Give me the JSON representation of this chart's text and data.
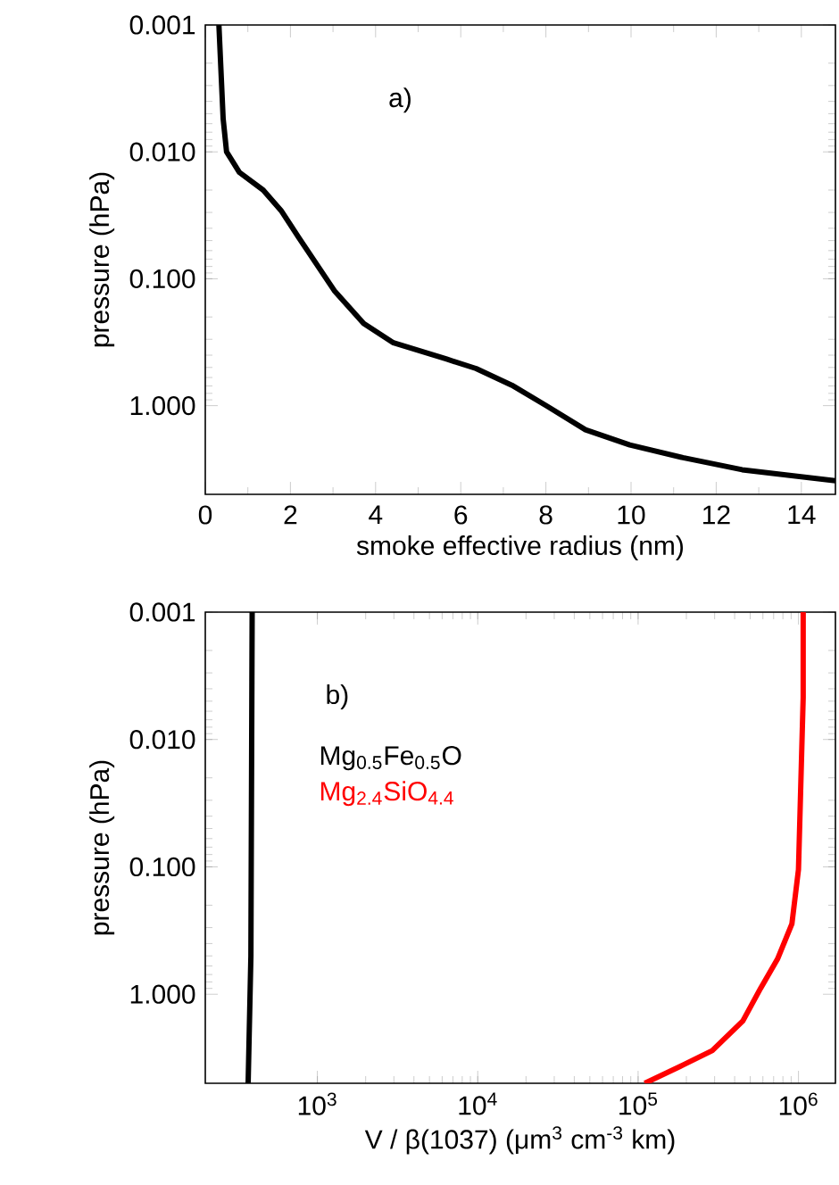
{
  "chart_data": [
    {
      "type": "line",
      "xlabel": "smoke effective radius (nm)",
      "ylabel": "pressure (hPa)",
      "annotations": [
        "a)"
      ],
      "log": "y",
      "xlim": [
        0,
        14.8
      ],
      "xticks": [
        0,
        2,
        4,
        6,
        8,
        10,
        12,
        14
      ],
      "ylim": [
        5,
        0.001
      ],
      "yticks": [
        {
          "value": 0.001,
          "label": "0.001"
        },
        {
          "value": 0.01,
          "label": "0.010"
        },
        {
          "value": 0.1,
          "label": "0.100"
        },
        {
          "value": 1,
          "label": "1.000"
        }
      ],
      "series": [
        {
          "color": "#000000",
          "x": [
            0.32,
            0.42,
            0.5,
            0.8,
            1.36,
            1.78,
            2.19,
            3.03,
            3.72,
            4.42,
            5.67,
            6.36,
            7.2,
            8.03,
            8.93,
            9.97,
            11.22,
            12.61,
            14.8
          ],
          "values": [
            0.001,
            0.0055,
            0.01,
            0.0145,
            0.02,
            0.029,
            0.047,
            0.124,
            0.225,
            0.32,
            0.43,
            0.51,
            0.69,
            1.01,
            1.55,
            2.04,
            2.57,
            3.2,
            3.9
          ]
        }
      ]
    },
    {
      "type": "line",
      "xlabel": "V / β(1037) (μm$^{3}$ cm$^{-3}$ km)",
      "ylabel": "pressure (hPa)",
      "annotations": [
        "b)"
      ],
      "log": "xy",
      "legend": "top left",
      "xlim": [
        200,
        1700000
      ],
      "xticks": [
        {
          "value": 1000,
          "label": "10$^{3}$"
        },
        {
          "value": 10000,
          "label": "10$^{4}$"
        },
        {
          "value": 100000,
          "label": "10$^{5}$"
        },
        {
          "value": 1000000,
          "label": "10$^{6}$"
        }
      ],
      "ylim": [
        5,
        0.001
      ],
      "yticks": [
        {
          "value": 0.001,
          "label": "0.001"
        },
        {
          "value": 0.01,
          "label": "0.010"
        },
        {
          "value": 0.1,
          "label": "0.100"
        },
        {
          "value": 1,
          "label": "1.000"
        }
      ],
      "series": [
        {
          "name": "Mg$_{0.5}$Fe$_{0.5}$O",
          "color": "#000000",
          "x": [
            392,
            385,
            370
          ],
          "values": [
            0.001,
            0.5,
            5
          ]
        },
        {
          "name": "Mg$_{2.4}$SiO$_{4.4}$",
          "color": "#ff0000",
          "x": [
            1070000,
            1070000,
            1000000,
            910000,
            740000,
            580000,
            450000,
            290000,
            190000,
            110000
          ],
          "values": [
            0.001,
            0.0047,
            0.105,
            0.28,
            0.53,
            0.9,
            1.62,
            2.77,
            3.6,
            5
          ]
        }
      ]
    }
  ]
}
